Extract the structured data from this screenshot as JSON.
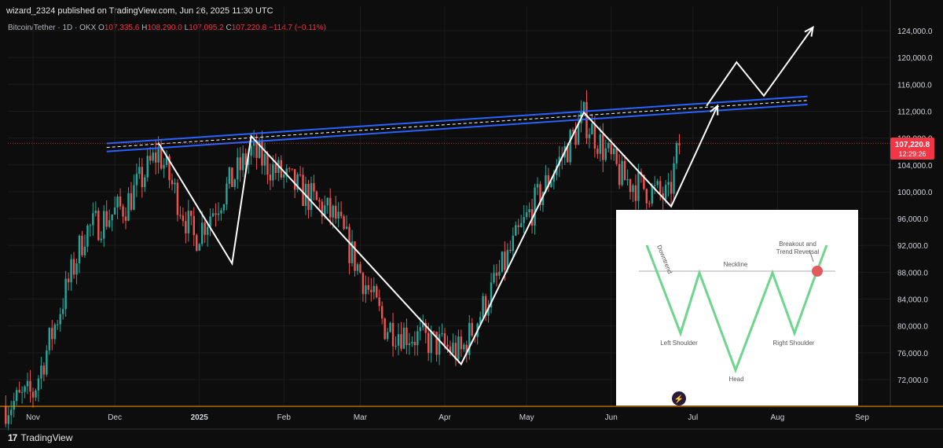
{
  "header": {
    "publisher_line": "wizard_2324 published on TradingView.com, Jun 26, 2025 11:30 UTC"
  },
  "symbol": {
    "name": "Bitcoin/Tether · 1D · OKX",
    "o_label": "O",
    "o_value": "107,335.6",
    "h_label": "H",
    "h_value": "108,290.0",
    "l_label": "L",
    "l_value": "107,095.2",
    "c_label": "C",
    "c_value": "107,220.8",
    "change": "−114.7 (−0.11%)"
  },
  "price_tag": {
    "price": "107,220.8",
    "countdown": "12:29:26",
    "color": "#f23645"
  },
  "footer": {
    "brand": "TradingView",
    "logo_text": "17"
  },
  "colors": {
    "up": "#26a69a",
    "down": "#ef5350",
    "channel": "#2962ff",
    "background": "#0d0d0d"
  },
  "inset": {
    "neckline_label": "Neckline",
    "downtrend_label": "Downtrend",
    "left_shoulder_label": "Left Shoulder",
    "head_label": "Head",
    "right_shoulder_label": "Right Shoulder",
    "breakout_label_1": "Breakout and",
    "breakout_label_2": "Trend Reversal",
    "pattern_color": "#6dd58c",
    "breakout_color": "#e05c5c"
  },
  "chart_data": {
    "type": "candlestick",
    "title": "Bitcoin/Tether · 1D · OKX",
    "y_axis_ticks": [
      124000,
      120000,
      116000,
      112000,
      108000,
      104000,
      100000,
      96000,
      92000,
      88000,
      84000,
      80000,
      76000,
      72000
    ],
    "y_axis_tick_labels": [
      "124,000.0",
      "120,000.0",
      "116,000.0",
      "112,000.0",
      "108,000.0",
      "104,000.0",
      "100,000.0",
      "96,000.0",
      "92,000.0",
      "88,000.0",
      "84,000.0",
      "80,000.0",
      "76,000.0",
      "72,000.0"
    ],
    "x_axis_labels": [
      "Nov",
      "Dec",
      "2025",
      "Feb",
      "Mar",
      "Apr",
      "May",
      "Jun",
      "Jul",
      "Aug",
      "Sep"
    ],
    "ylim": [
      69000,
      125500
    ],
    "last_price": 107220.8,
    "candles_monthly_close": [
      {
        "date": "2024-11-01",
        "close": 70000
      },
      {
        "date": "2024-11-20",
        "close": 94000
      },
      {
        "date": "2024-12-05",
        "close": 98000
      },
      {
        "date": "2024-12-17",
        "close": 106000
      },
      {
        "date": "2024-12-30",
        "close": 93000
      },
      {
        "date": "2025-01-20",
        "close": 106000
      },
      {
        "date": "2025-02-20",
        "close": 96000
      },
      {
        "date": "2025-03-10",
        "close": 80000
      },
      {
        "date": "2025-04-07",
        "close": 76000
      },
      {
        "date": "2025-05-01",
        "close": 96000
      },
      {
        "date": "2025-05-22",
        "close": 111000
      },
      {
        "date": "2025-06-05",
        "close": 102000
      },
      {
        "date": "2025-06-22",
        "close": 99000
      },
      {
        "date": "2025-06-26",
        "close": 107220.8
      }
    ],
    "channel_upper": [
      {
        "date": "2024-11-28",
        "price": 107200
      },
      {
        "date": "2025-08-12",
        "price": 114200
      }
    ],
    "channel_lower": [
      {
        "date": "2024-11-28",
        "price": 106000
      },
      {
        "date": "2025-08-12",
        "price": 113000
      }
    ],
    "zigzag": [
      {
        "date": "2024-12-17",
        "price": 107300
      },
      {
        "date": "2025-01-13",
        "price": 89300
      },
      {
        "date": "2025-01-20",
        "price": 108300
      },
      {
        "date": "2025-04-07",
        "price": 74300
      },
      {
        "date": "2025-05-22",
        "price": 111800
      },
      {
        "date": "2025-06-23",
        "price": 97800
      },
      {
        "date": "2025-07-10",
        "price": 112800
      }
    ],
    "projection": [
      {
        "date": "2025-07-06",
        "price": 112800
      },
      {
        "date": "2025-07-17",
        "price": 119300
      },
      {
        "date": "2025-07-27",
        "price": 114300
      },
      {
        "date": "2025-08-14",
        "price": 124500
      }
    ]
  }
}
